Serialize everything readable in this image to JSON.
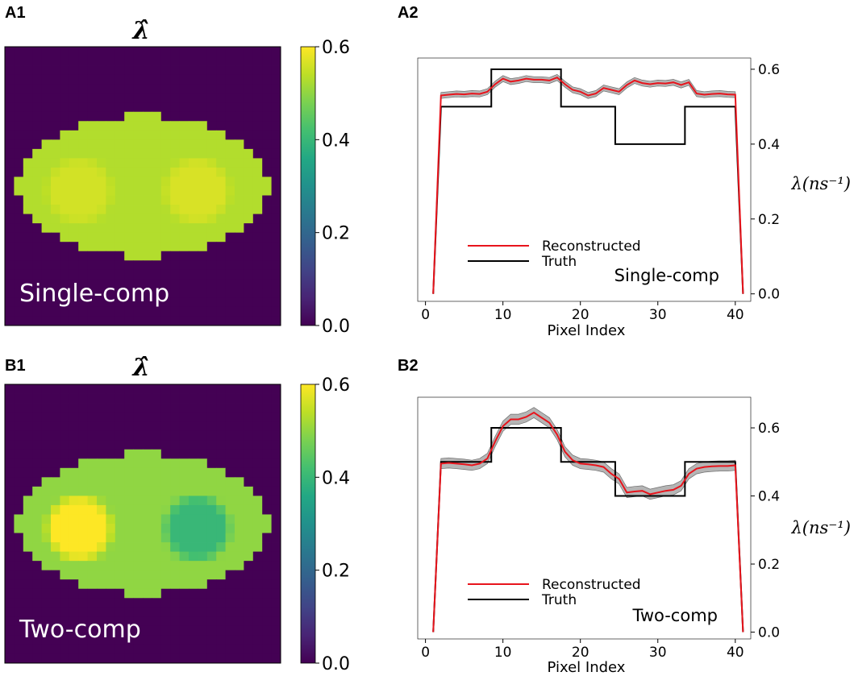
{
  "colors": {
    "background": "#440154",
    "tissue_main": "#a6d23b",
    "reconstructed": "#e8141c",
    "truth": "#000000",
    "band": "#a9a9a9",
    "map_text": "#ffffff"
  },
  "chart_data": [
    {
      "type": "heatmap",
      "panel": "A1",
      "title": "λ̂",
      "label": "Single-comp",
      "colormap": "viridis",
      "vmin": 0.0,
      "vmax": 0.6,
      "colorbar_ticks": [
        "0.0",
        "0.2",
        "0.4",
        "0.6"
      ],
      "background_value": 0.0,
      "tissue_value": 0.53,
      "left_inclusion_value": 0.56,
      "right_inclusion_value": 0.565
    },
    {
      "type": "line",
      "panel": "A2",
      "xlabel": "Pixel Index",
      "ylabel": "λ(ns⁻¹)",
      "xlim": [
        -1,
        42
      ],
      "ylim": [
        -0.02,
        0.63
      ],
      "xticks": [
        "0",
        "10",
        "20",
        "30",
        "40"
      ],
      "yticks": [
        "0.0",
        "0.2",
        "0.4",
        "0.6"
      ],
      "annotation": "Single-comp",
      "legend": [
        "Reconstructed",
        "Truth"
      ],
      "series": [
        {
          "name": "Reconstructed",
          "x": [
            1,
            2,
            3,
            4,
            5,
            6,
            7,
            8,
            9,
            10,
            11,
            12,
            13,
            14,
            15,
            16,
            17,
            18,
            19,
            20,
            21,
            22,
            23,
            24,
            25,
            26,
            27,
            28,
            29,
            30,
            31,
            32,
            33,
            34,
            35,
            36,
            37,
            38,
            39,
            40,
            41
          ],
          "values": [
            0.0,
            0.53,
            0.532,
            0.534,
            0.533,
            0.535,
            0.534,
            0.54,
            0.56,
            0.575,
            0.567,
            0.57,
            0.575,
            0.572,
            0.572,
            0.57,
            0.578,
            0.56,
            0.545,
            0.54,
            0.53,
            0.535,
            0.55,
            0.545,
            0.54,
            0.558,
            0.57,
            0.563,
            0.56,
            0.563,
            0.562,
            0.565,
            0.558,
            0.565,
            0.535,
            0.532,
            0.534,
            0.535,
            0.533,
            0.532,
            0.0
          ],
          "band": 0.008
        },
        {
          "name": "Truth",
          "x": [
            1,
            2,
            3,
            4,
            5,
            6,
            7,
            8,
            9,
            10,
            11,
            12,
            13,
            14,
            15,
            16,
            17,
            18,
            19,
            20,
            21,
            22,
            23,
            24,
            25,
            26,
            27,
            28,
            29,
            30,
            31,
            32,
            33,
            34,
            35,
            36,
            37,
            38,
            39,
            40,
            41
          ],
          "values": [
            0.0,
            0.5,
            0.5,
            0.5,
            0.5,
            0.5,
            0.5,
            0.5,
            0.6,
            0.6,
            0.6,
            0.6,
            0.6,
            0.6,
            0.6,
            0.6,
            0.6,
            0.5,
            0.5,
            0.5,
            0.5,
            0.5,
            0.5,
            0.5,
            0.4,
            0.4,
            0.4,
            0.4,
            0.4,
            0.4,
            0.4,
            0.4,
            0.4,
            0.5,
            0.5,
            0.5,
            0.5,
            0.5,
            0.5,
            0.5,
            0.0
          ]
        }
      ]
    },
    {
      "type": "heatmap",
      "panel": "B1",
      "title": "λ̂",
      "label": "Two-comp",
      "colormap": "viridis",
      "vmin": 0.0,
      "vmax": 0.6,
      "colorbar_ticks": [
        "0.0",
        "0.2",
        "0.4",
        "0.6"
      ],
      "background_value": 0.0,
      "tissue_value": 0.5,
      "left_inclusion_value": 0.6,
      "right_inclusion_value": 0.4
    },
    {
      "type": "line",
      "panel": "B2",
      "xlabel": "Pixel Index",
      "ylabel": "λ(ns⁻¹)",
      "xlim": [
        -1,
        42
      ],
      "ylim": [
        -0.02,
        0.69
      ],
      "xticks": [
        "0",
        "10",
        "20",
        "30",
        "40"
      ],
      "yticks": [
        "0.0",
        "0.2",
        "0.4",
        "0.6"
      ],
      "annotation": "Two-comp",
      "legend": [
        "Reconstructed",
        "Truth"
      ],
      "series": [
        {
          "name": "Reconstructed",
          "x": [
            1,
            2,
            3,
            4,
            5,
            6,
            7,
            8,
            9,
            10,
            11,
            12,
            13,
            14,
            15,
            16,
            17,
            18,
            19,
            20,
            21,
            22,
            23,
            24,
            25,
            26,
            27,
            28,
            29,
            30,
            31,
            32,
            33,
            34,
            35,
            36,
            37,
            38,
            39,
            40,
            41
          ],
          "values": [
            0.0,
            0.495,
            0.497,
            0.495,
            0.493,
            0.49,
            0.495,
            0.51,
            0.56,
            0.605,
            0.625,
            0.625,
            0.632,
            0.645,
            0.63,
            0.615,
            0.58,
            0.53,
            0.505,
            0.495,
            0.493,
            0.49,
            0.485,
            0.465,
            0.45,
            0.41,
            0.413,
            0.415,
            0.405,
            0.41,
            0.415,
            0.418,
            0.43,
            0.465,
            0.48,
            0.485,
            0.487,
            0.488,
            0.488,
            0.49,
            0.0
          ],
          "band": 0.015
        },
        {
          "name": "Truth",
          "x": [
            1,
            2,
            3,
            4,
            5,
            6,
            7,
            8,
            9,
            10,
            11,
            12,
            13,
            14,
            15,
            16,
            17,
            18,
            19,
            20,
            21,
            22,
            23,
            24,
            25,
            26,
            27,
            28,
            29,
            30,
            31,
            32,
            33,
            34,
            35,
            36,
            37,
            38,
            39,
            40,
            41
          ],
          "values": [
            0.0,
            0.5,
            0.5,
            0.5,
            0.5,
            0.5,
            0.5,
            0.5,
            0.6,
            0.6,
            0.6,
            0.6,
            0.6,
            0.6,
            0.6,
            0.6,
            0.6,
            0.5,
            0.5,
            0.5,
            0.5,
            0.5,
            0.5,
            0.5,
            0.4,
            0.4,
            0.4,
            0.4,
            0.4,
            0.4,
            0.4,
            0.4,
            0.4,
            0.5,
            0.5,
            0.5,
            0.5,
            0.5,
            0.5,
            0.5,
            0.0
          ]
        }
      ]
    }
  ]
}
